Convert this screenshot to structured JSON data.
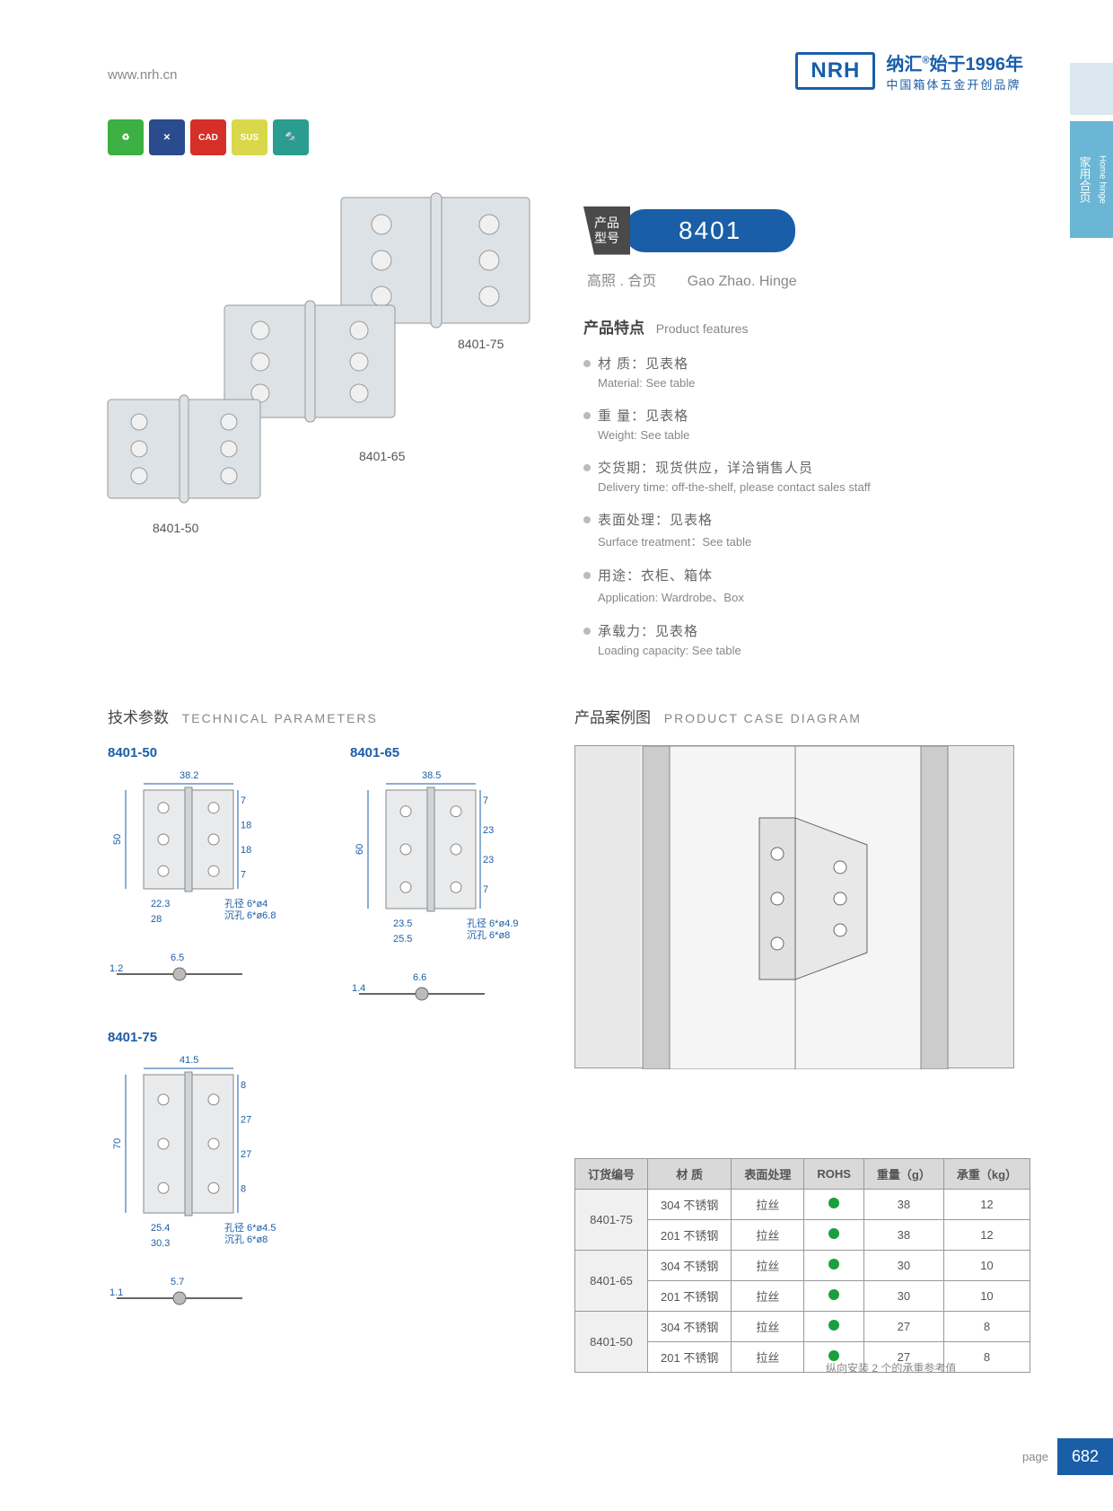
{
  "header": {
    "url": "www.nrh.cn",
    "logo": "NRH",
    "brand_cn": "纳汇",
    "since": "始于1996年",
    "tagline": "中国箱体五金开创品牌"
  },
  "side_tab": {
    "cn": "家用合页",
    "en": "Home hinge"
  },
  "icons": [
    {
      "bg": "#3cb043",
      "label": "♻"
    },
    {
      "bg": "#2a4b8d",
      "label": "✕"
    },
    {
      "bg": "#d43028",
      "label": "CAD"
    },
    {
      "bg": "#d8d84a",
      "label": "SUS"
    },
    {
      "bg": "#2a9d8f",
      "label": "🔩"
    }
  ],
  "product_labels": {
    "p1": "8401-75",
    "p2": "8401-65",
    "p3": "8401-50"
  },
  "model": {
    "badge": "产品\n型号",
    "number": "8401",
    "sub_cn": "高照 . 合页",
    "sub_en": "Gao Zhao. Hinge"
  },
  "features_header": {
    "cn": "产品特点",
    "en": "Product features"
  },
  "features": [
    {
      "cn": "材  质：见表格",
      "en": "Material: See table"
    },
    {
      "cn": "重  量：见表格",
      "en": "Weight: See table"
    },
    {
      "cn": "交货期：现货供应，详洽销售人员",
      "en": "Delivery time: off-the-shelf, please contact sales staff"
    },
    {
      "cn": "表面处理：见表格",
      "en": "Surface treatment：See table"
    },
    {
      "cn": "用途：衣柜、箱体",
      "en": "Application: Wardrobe、Box"
    },
    {
      "cn": "承载力：见表格",
      "en": "Loading capacity: See table"
    }
  ],
  "tech": {
    "title_cn": "技术参数",
    "title_en": "TECHNICAL PARAMETERS"
  },
  "case": {
    "title_cn": "产品案例图",
    "title_en": "PRODUCT CASE DIAGRAM"
  },
  "diagrams": {
    "d1": {
      "label": "8401-50",
      "w": "38.2",
      "h": "50",
      "dims": [
        "7",
        "18",
        "18",
        "7"
      ],
      "bottom": [
        "22.3",
        "28"
      ],
      "hole": "孔径 6*ø4",
      "sink": "沉孔 6*ø6.8",
      "side_w": "6.5",
      "side_h": "1.2"
    },
    "d2": {
      "label": "8401-65",
      "w": "38.5",
      "h": "60",
      "dims": [
        "7",
        "23",
        "23",
        "7"
      ],
      "bottom": [
        "23.5",
        "25.5"
      ],
      "hole": "孔径 6*ø4.9",
      "sink": "沉孔 6*ø8",
      "side_w": "6.6",
      "side_h": "1.4"
    },
    "d3": {
      "label": "8401-75",
      "w": "41.5",
      "h": "70",
      "dims": [
        "8",
        "27",
        "27",
        "8"
      ],
      "bottom": [
        "25.4",
        "30.3"
      ],
      "hole": "孔径 6*ø4.5",
      "sink": "沉孔 6*ø8",
      "side_w": "5.7",
      "side_h": "1.1"
    }
  },
  "table": {
    "headers": [
      "订货编号",
      "材   质",
      "表面处理",
      "ROHS",
      "重量（g）",
      "承重（kg）"
    ],
    "rows": [
      {
        "id": "8401-75",
        "mat": "304 不锈钢",
        "surf": "拉丝",
        "w": "38",
        "cap": "12"
      },
      {
        "id": "",
        "mat": "201 不锈钢",
        "surf": "拉丝",
        "w": "38",
        "cap": "12"
      },
      {
        "id": "8401-65",
        "mat": "304 不锈钢",
        "surf": "拉丝",
        "w": "30",
        "cap": "10"
      },
      {
        "id": "",
        "mat": "201 不锈钢",
        "surf": "拉丝",
        "w": "30",
        "cap": "10"
      },
      {
        "id": "8401-50",
        "mat": "304 不锈钢",
        "surf": "拉丝",
        "w": "27",
        "cap": "8"
      },
      {
        "id": "",
        "mat": "201 不锈钢",
        "surf": "拉丝",
        "w": "27",
        "cap": "8"
      }
    ],
    "note": "纵向安装 2 个的承重参考值"
  },
  "footer": {
    "label": "page",
    "num": "682"
  }
}
